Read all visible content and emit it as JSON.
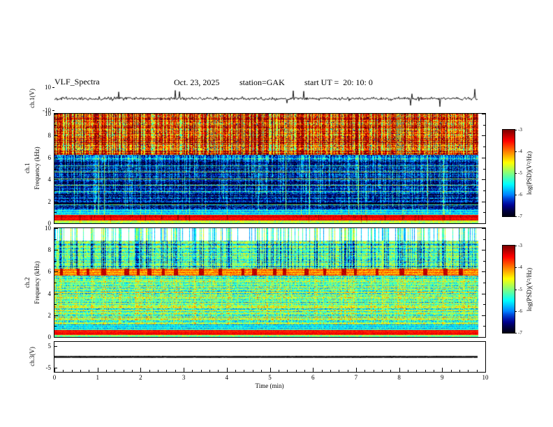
{
  "header": {
    "title": "VLF_Spectra",
    "date": "Oct. 23, 2025",
    "station": "station=GAK",
    "start_ut": "start UT =  20: 10: 0"
  },
  "x_axis": {
    "label": "Time (min)",
    "min": 0,
    "max": 10,
    "major_ticks": [
      0,
      1,
      2,
      3,
      4,
      5,
      6,
      7,
      8,
      9,
      10
    ],
    "minor_tick_interval": 0.2
  },
  "panels": {
    "ch1_wave": {
      "ylabel": "ch.1(V)",
      "ymin": -10,
      "ymax": 10,
      "ytick_labels": [
        "10",
        "-10"
      ]
    },
    "ch1_spec": {
      "channel": "ch.1",
      "ylabel": "Frequency (kHz)",
      "ymin": 0,
      "ymax": 10,
      "yticks": [
        0,
        2,
        4,
        6,
        8,
        10
      ]
    },
    "ch2_spec": {
      "channel": "ch.2",
      "ylabel": "Frequency (kHz)",
      "ymin": 0,
      "ymax": 10,
      "yticks": [
        0,
        2,
        4,
        6,
        8,
        10
      ]
    },
    "ch3_wave": {
      "ylabel": "ch.3(V)",
      "ymin": -5,
      "ymax": 5,
      "ytick_labels": [
        "5",
        "-5"
      ]
    }
  },
  "colorbar": {
    "label": "log(PSD)(V²/Hz)",
    "min": -7,
    "max": -3,
    "ticks": [
      -3,
      -4,
      -5,
      -6,
      -7
    ]
  },
  "chart_data": [
    {
      "type": "line",
      "panel": "ch.1 waveform",
      "ylabel": "ch.1(V)",
      "x_units": "min",
      "xlim": [
        0,
        10
      ],
      "ylim": [
        -10,
        10
      ],
      "signal": {
        "kind": "broadband noise",
        "mean_V": 0,
        "rms_V": 1.3,
        "spike_amplitude_V": [
          4,
          9
        ],
        "spike_probability": 0.02,
        "data_end_min": 9.85
      }
    },
    {
      "type": "heatmap",
      "panel": "ch.1 spectrogram",
      "channel": "ch.1",
      "ylabel": "Frequency (kHz)",
      "xlim": [
        0,
        10
      ],
      "ylim": [
        0,
        10
      ],
      "zlabel": "log(PSD)(V²/Hz)",
      "zlim": [
        -7,
        -3
      ],
      "bands": [
        {
          "f_kHz": [
            0,
            0.3
          ],
          "level": -4.8,
          "noise": 0.3,
          "desc": "cyan-green strip at bottom edge"
        },
        {
          "f_kHz": [
            0.3,
            0.8
          ],
          "level": -3.4,
          "noise": 0.15,
          "desc": "intense red-orange hum band"
        },
        {
          "f_kHz": [
            0.8,
            1.3
          ],
          "level": -5.6,
          "noise": 0.3,
          "desc": "blue-cyan transition band"
        },
        {
          "f_kHz": [
            1.3,
            6.3
          ],
          "level": -6.6,
          "noise": 0.45,
          "desc": "dark blue background with blue horizontal harmonic lines and vertical sferic streaks"
        },
        {
          "f_kHz": [
            6.3,
            10
          ],
          "level": -4.6,
          "noise": 0.55,
          "desc": "dense green-yellow speckle with strong impulsive vertical streaks"
        }
      ],
      "streaks": {
        "kind": "vertical broadband impulses (sferics)",
        "column_density": 0.5
      },
      "data_end_min": 9.85
    },
    {
      "type": "heatmap",
      "panel": "ch.2 spectrogram",
      "channel": "ch.2",
      "ylabel": "Frequency (kHz)",
      "xlim": [
        0,
        10
      ],
      "ylim": [
        0,
        10
      ],
      "zlabel": "log(PSD)(V²/Hz)",
      "zlim": [
        -7,
        -3
      ],
      "bands": [
        {
          "f_kHz": [
            0,
            0.25
          ],
          "level": -5.0,
          "noise": 0.3,
          "desc": "green strip at bottom edge"
        },
        {
          "f_kHz": [
            0.25,
            0.7
          ],
          "level": -3.5,
          "noise": 0.15,
          "desc": "red-orange hum band"
        },
        {
          "f_kHz": [
            0.7,
            1.2
          ],
          "level": -5.6,
          "noise": 0.3,
          "desc": "blue-cyan band"
        },
        {
          "f_kHz": [
            1.2,
            5.7
          ],
          "level": -5.0,
          "noise": 0.5,
          "desc": "cyan-green with horizontal striations and vertical streaks"
        },
        {
          "f_kHz": [
            5.7,
            6.3
          ],
          "level": -4.1,
          "noise": 0.3,
          "desc": "yellow-orange band with periodic red blobs"
        },
        {
          "f_kHz": [
            6.3,
            8.9
          ],
          "level": -5.1,
          "noise": 0.5,
          "desc": "green-cyan with blue vertical streaks"
        },
        {
          "f_kHz": [
            8.9,
            10
          ],
          "level": -6.95,
          "noise": 0.1,
          "desc": "near-background (white) with sparse blue-cyan vertical streaks"
        }
      ],
      "streaks": {
        "kind": "vertical broadband impulses (sferics)",
        "column_density": 0.3
      },
      "data_end_min": 9.85
    },
    {
      "type": "line",
      "panel": "ch.3 waveform",
      "ylabel": "ch.3(V)",
      "x_units": "min",
      "xlim": [
        0,
        10
      ],
      "ylim": [
        -5,
        5
      ],
      "signal": {
        "kind": "flat",
        "mean_V": 0,
        "rms_V": 0.04,
        "spike_amplitude_V": [
          0,
          0
        ],
        "spike_probability": 0,
        "data_end_min": 9.85
      }
    }
  ]
}
